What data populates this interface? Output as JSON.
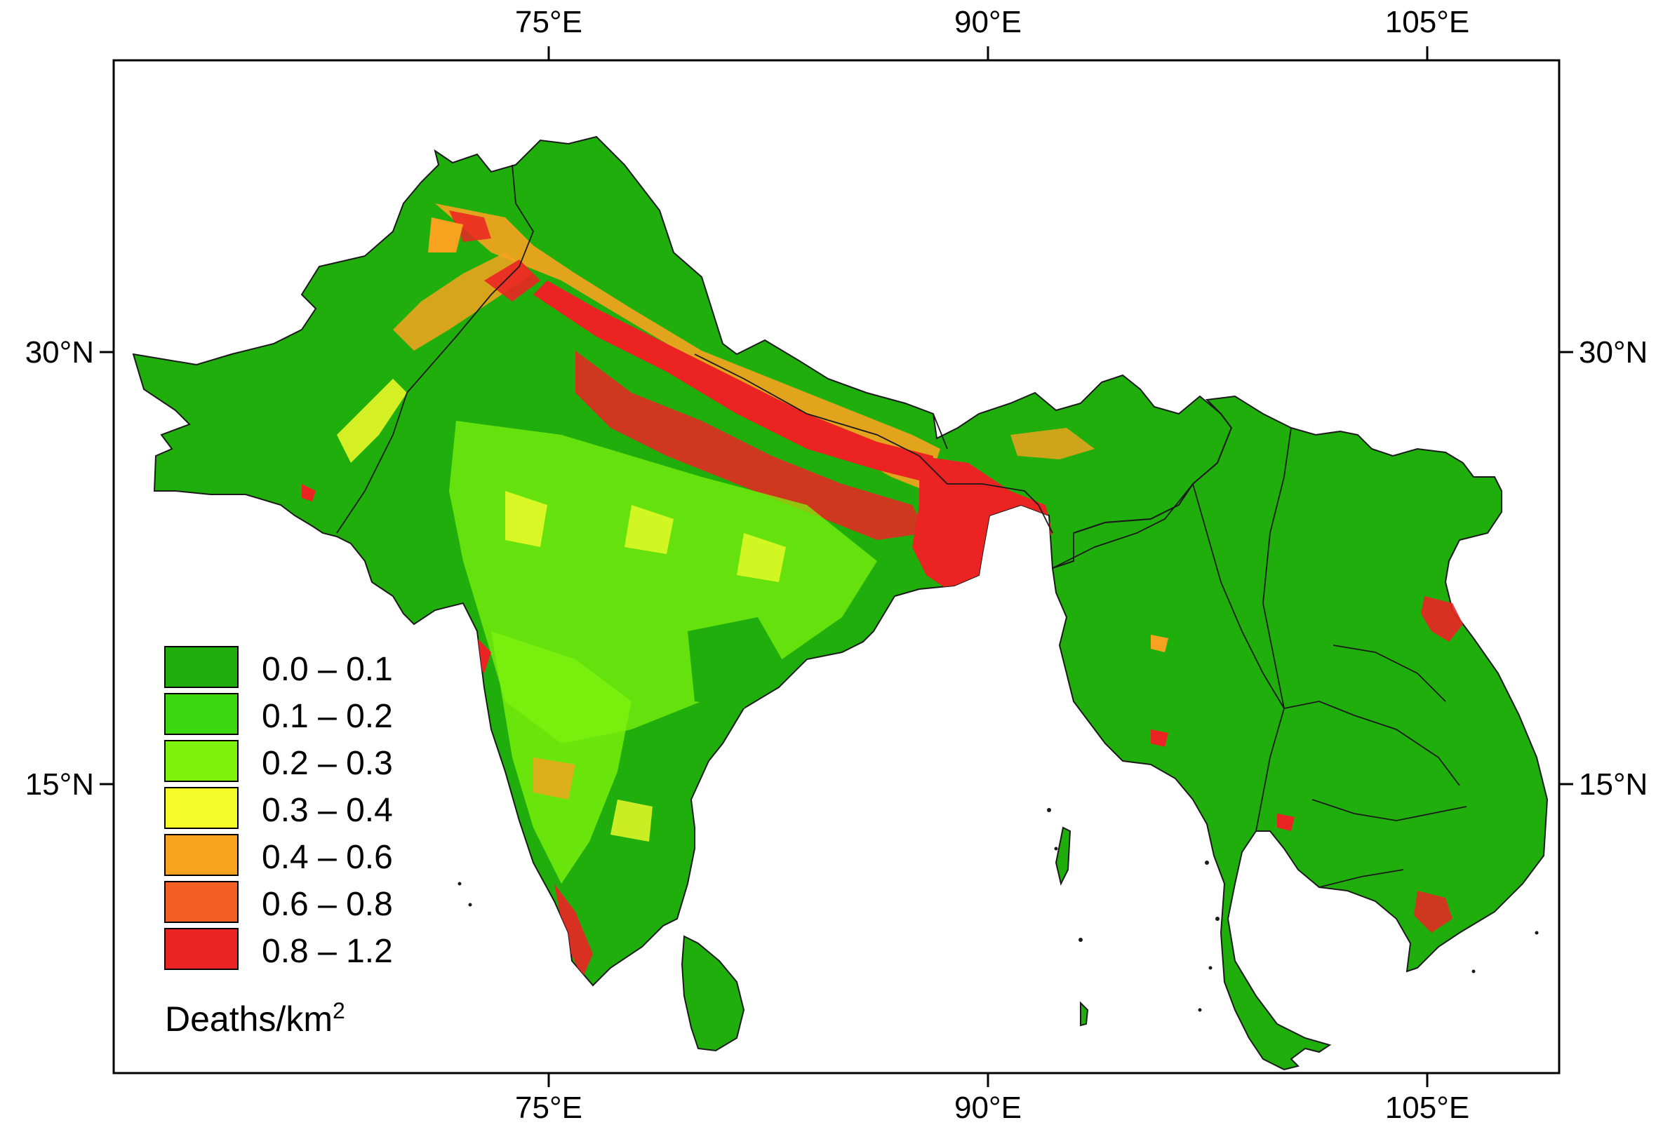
{
  "map": {
    "lon_ticks": [
      "75°E",
      "90°E",
      "105°E"
    ],
    "lat_ticks": [
      "30°N",
      "15°N"
    ],
    "legend": {
      "title": "Deaths/km",
      "title_sup": "2",
      "items": [
        {
          "label": "0.0 – 0.1",
          "color": "#1fae0c"
        },
        {
          "label": "0.1 – 0.2",
          "color": "#3cd80f"
        },
        {
          "label": "0.2 – 0.3",
          "color": "#7df20d"
        },
        {
          "label": "0.3 – 0.4",
          "color": "#f5fc2a"
        },
        {
          "label": "0.4 – 0.6",
          "color": "#f7a31f"
        },
        {
          "label": "0.6 – 0.8",
          "color": "#f25f22"
        },
        {
          "label": "0.8 – 1.2",
          "color": "#ec2323"
        }
      ]
    },
    "colors": {
      "land_base": "#1fae0c",
      "border": "#1a1a1a",
      "frame": "#000000"
    }
  }
}
